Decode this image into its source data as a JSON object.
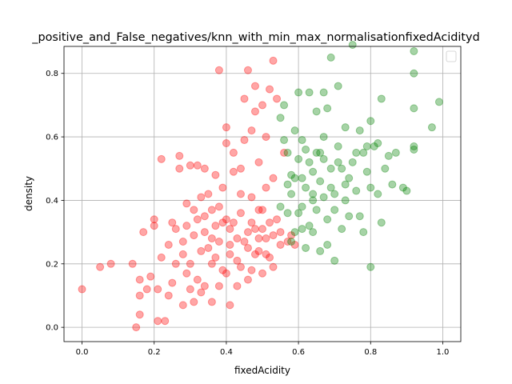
{
  "chart_data": {
    "type": "scatter",
    "title": "_positive_and_False_negatives/knn_with_min_max_normalisationfixedAcidityd",
    "xlabel": "fixedAcidity",
    "ylabel": "density",
    "xlim": [
      -0.05,
      1.05
    ],
    "ylim": [
      -0.045,
      0.885
    ],
    "xticks": [
      0.0,
      0.2,
      0.4,
      0.6,
      0.8,
      1.0
    ],
    "yticks": [
      0.0,
      0.2,
      0.4,
      0.6,
      0.8
    ],
    "xtick_labels": [
      "0.0",
      "0.2",
      "0.4",
      "0.6",
      "0.8",
      "1.0"
    ],
    "ytick_labels": [
      "0.0",
      "0.2",
      "0.4",
      "0.6",
      "0.8"
    ],
    "grid": true,
    "legend": {
      "placement": "top-right",
      "entries": []
    },
    "series": [
      {
        "color": "#ff0000",
        "alpha": 0.35,
        "points": [
          [
            0.0,
            0.12
          ],
          [
            0.05,
            0.19
          ],
          [
            0.08,
            0.2
          ],
          [
            0.14,
            0.2
          ],
          [
            0.15,
            0.0
          ],
          [
            0.16,
            0.04
          ],
          [
            0.16,
            0.1
          ],
          [
            0.16,
            0.15
          ],
          [
            0.17,
            0.3
          ],
          [
            0.18,
            0.12
          ],
          [
            0.19,
            0.16
          ],
          [
            0.2,
            0.32
          ],
          [
            0.2,
            0.34
          ],
          [
            0.21,
            0.02
          ],
          [
            0.21,
            0.12
          ],
          [
            0.22,
            0.22
          ],
          [
            0.22,
            0.53
          ],
          [
            0.23,
            0.02
          ],
          [
            0.24,
            0.1
          ],
          [
            0.25,
            0.14
          ],
          [
            0.25,
            0.33
          ],
          [
            0.26,
            0.2
          ],
          [
            0.27,
            0.5
          ],
          [
            0.27,
            0.54
          ],
          [
            0.28,
            0.07
          ],
          [
            0.28,
            0.23
          ],
          [
            0.29,
            0.32
          ],
          [
            0.29,
            0.39
          ],
          [
            0.3,
            0.12
          ],
          [
            0.3,
            0.51
          ],
          [
            0.31,
            0.08
          ],
          [
            0.31,
            0.29
          ],
          [
            0.32,
            0.34
          ],
          [
            0.32,
            0.51
          ],
          [
            0.33,
            0.11
          ],
          [
            0.33,
            0.41
          ],
          [
            0.34,
            0.13
          ],
          [
            0.34,
            0.3
          ],
          [
            0.34,
            0.5
          ],
          [
            0.35,
            0.42
          ],
          [
            0.36,
            0.08
          ],
          [
            0.36,
            0.2
          ],
          [
            0.36,
            0.37
          ],
          [
            0.37,
            0.32
          ],
          [
            0.37,
            0.48
          ],
          [
            0.38,
            0.13
          ],
          [
            0.38,
            0.27
          ],
          [
            0.38,
            0.81
          ],
          [
            0.39,
            0.33
          ],
          [
            0.39,
            0.44
          ],
          [
            0.4,
            0.17
          ],
          [
            0.4,
            0.58
          ],
          [
            0.4,
            0.63
          ],
          [
            0.41,
            0.07
          ],
          [
            0.41,
            0.23
          ],
          [
            0.41,
            0.31
          ],
          [
            0.42,
            0.49
          ],
          [
            0.42,
            0.55
          ],
          [
            0.43,
            0.13
          ],
          [
            0.43,
            0.28
          ],
          [
            0.44,
            0.19
          ],
          [
            0.44,
            0.36
          ],
          [
            0.44,
            0.5
          ],
          [
            0.45,
            0.59
          ],
          [
            0.45,
            0.72
          ],
          [
            0.46,
            0.15
          ],
          [
            0.46,
            0.3
          ],
          [
            0.46,
            0.81
          ],
          [
            0.47,
            0.41
          ],
          [
            0.47,
            0.62
          ],
          [
            0.48,
            0.23
          ],
          [
            0.48,
            0.68
          ],
          [
            0.48,
            0.76
          ],
          [
            0.49,
            0.37
          ],
          [
            0.49,
            0.52
          ],
          [
            0.5,
            0.17
          ],
          [
            0.5,
            0.31
          ],
          [
            0.5,
            0.7
          ],
          [
            0.51,
            0.44
          ],
          [
            0.51,
            0.6
          ],
          [
            0.52,
            0.22
          ],
          [
            0.52,
            0.75
          ],
          [
            0.53,
            0.29
          ],
          [
            0.53,
            0.47
          ],
          [
            0.53,
            0.84
          ],
          [
            0.54,
            0.34
          ],
          [
            0.54,
            0.72
          ],
          [
            0.55,
            0.26
          ],
          [
            0.56,
            0.55
          ],
          [
            0.57,
            0.27
          ],
          [
            0.58,
            0.29
          ],
          [
            0.59,
            0.26
          ],
          [
            0.3,
            0.2
          ],
          [
            0.32,
            0.15
          ],
          [
            0.35,
            0.25
          ],
          [
            0.37,
            0.22
          ],
          [
            0.39,
            0.18
          ],
          [
            0.41,
            0.26
          ],
          [
            0.43,
            0.21
          ],
          [
            0.45,
            0.27
          ],
          [
            0.47,
            0.18
          ],
          [
            0.49,
            0.24
          ],
          [
            0.51,
            0.28
          ],
          [
            0.28,
            0.27
          ],
          [
            0.33,
            0.24
          ],
          [
            0.36,
            0.28
          ],
          [
            0.42,
            0.33
          ],
          [
            0.46,
            0.25
          ],
          [
            0.48,
            0.31
          ],
          [
            0.52,
            0.33
          ],
          [
            0.44,
            0.42
          ],
          [
            0.5,
            0.37
          ],
          [
            0.26,
            0.31
          ],
          [
            0.24,
            0.26
          ],
          [
            0.29,
            0.17
          ],
          [
            0.31,
            0.37
          ],
          [
            0.34,
            0.35
          ],
          [
            0.38,
            0.38
          ],
          [
            0.4,
            0.34
          ],
          [
            0.47,
            0.33
          ],
          [
            0.49,
            0.28
          ],
          [
            0.51,
            0.23
          ],
          [
            0.55,
            0.3
          ],
          [
            0.53,
            0.19
          ]
        ]
      },
      {
        "color": "#008000",
        "alpha": 0.35,
        "points": [
          [
            0.55,
            0.66
          ],
          [
            0.56,
            0.7
          ],
          [
            0.56,
            0.59
          ],
          [
            0.57,
            0.45
          ],
          [
            0.57,
            0.36
          ],
          [
            0.58,
            0.27
          ],
          [
            0.59,
            0.62
          ],
          [
            0.59,
            0.47
          ],
          [
            0.6,
            0.53
          ],
          [
            0.6,
            0.74
          ],
          [
            0.61,
            0.59
          ],
          [
            0.61,
            0.38
          ],
          [
            0.62,
            0.44
          ],
          [
            0.62,
            0.25
          ],
          [
            0.63,
            0.52
          ],
          [
            0.63,
            0.74
          ],
          [
            0.64,
            0.4
          ],
          [
            0.64,
            0.3
          ],
          [
            0.65,
            0.68
          ],
          [
            0.65,
            0.55
          ],
          [
            0.66,
            0.46
          ],
          [
            0.66,
            0.24
          ],
          [
            0.67,
            0.74
          ],
          [
            0.67,
            0.6
          ],
          [
            0.68,
            0.34
          ],
          [
            0.68,
            0.26
          ],
          [
            0.69,
            0.85
          ],
          [
            0.69,
            0.5
          ],
          [
            0.7,
            0.42
          ],
          [
            0.7,
            0.21
          ],
          [
            0.71,
            0.76
          ],
          [
            0.71,
            0.57
          ],
          [
            0.72,
            0.31
          ],
          [
            0.73,
            0.45
          ],
          [
            0.73,
            0.63
          ],
          [
            0.74,
            0.35
          ],
          [
            0.75,
            0.89
          ],
          [
            0.75,
            0.52
          ],
          [
            0.76,
            0.43
          ],
          [
            0.77,
            0.62
          ],
          [
            0.77,
            0.35
          ],
          [
            0.78,
            0.55
          ],
          [
            0.79,
            0.49
          ],
          [
            0.8,
            0.44
          ],
          [
            0.8,
            0.65
          ],
          [
            0.8,
            0.19
          ],
          [
            0.81,
            0.57
          ],
          [
            0.82,
            0.42
          ],
          [
            0.83,
            0.33
          ],
          [
            0.83,
            0.72
          ],
          [
            0.84,
            0.5
          ],
          [
            0.85,
            0.54
          ],
          [
            0.86,
            0.45
          ],
          [
            0.87,
            0.55
          ],
          [
            0.89,
            0.44
          ],
          [
            0.9,
            0.43
          ],
          [
            0.92,
            0.87
          ],
          [
            0.92,
            0.8
          ],
          [
            0.92,
            0.69
          ],
          [
            0.92,
            0.57
          ],
          [
            0.92,
            0.56
          ],
          [
            0.97,
            0.63
          ],
          [
            0.99,
            0.71
          ],
          [
            0.58,
            0.42
          ],
          [
            0.6,
            0.36
          ],
          [
            0.61,
            0.47
          ],
          [
            0.63,
            0.32
          ],
          [
            0.64,
            0.49
          ],
          [
            0.66,
            0.55
          ],
          [
            0.67,
            0.41
          ],
          [
            0.69,
            0.44
          ],
          [
            0.72,
            0.5
          ],
          [
            0.74,
            0.47
          ],
          [
            0.57,
            0.55
          ],
          [
            0.59,
            0.3
          ],
          [
            0.62,
            0.56
          ],
          [
            0.65,
            0.37
          ],
          [
            0.68,
            0.69
          ],
          [
            0.7,
            0.37
          ],
          [
            0.76,
            0.55
          ],
          [
            0.78,
            0.3
          ],
          [
            0.55,
            0.38
          ],
          [
            0.58,
            0.48
          ],
          [
            0.61,
            0.31
          ],
          [
            0.64,
            0.42
          ],
          [
            0.67,
            0.53
          ],
          [
            0.71,
            0.52
          ],
          [
            0.73,
            0.4
          ],
          [
            0.79,
            0.57
          ],
          [
            0.82,
            0.58
          ]
        ]
      }
    ]
  }
}
